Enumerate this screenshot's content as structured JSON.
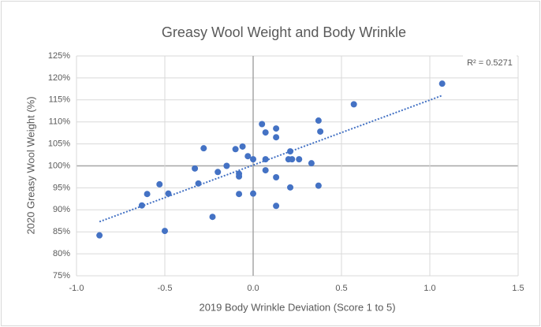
{
  "chart_data": {
    "type": "scatter",
    "title": "Greasy Wool Weight and Body Wrinkle",
    "xlabel": "2019 Body Wrinkle Deviation (Score 1 to 5)",
    "ylabel": "2020 Greasy Wool Weight (%)",
    "annotation": "R² = 0.5271",
    "color": "#4472c4",
    "x": [
      -0.87,
      -0.5,
      -0.63,
      -0.6,
      -0.48,
      -0.53,
      -0.33,
      -0.31,
      -0.28,
      -0.23,
      -0.2,
      -0.15,
      -0.1,
      -0.06,
      -0.08,
      -0.08,
      -0.08,
      -0.03,
      0.0,
      0.0,
      0.05,
      0.07,
      0.07,
      0.07,
      0.13,
      0.13,
      0.13,
      0.13,
      0.21,
      0.2,
      0.22,
      0.21,
      0.26,
      0.33,
      0.37,
      0.37,
      0.38,
      0.57,
      1.07
    ],
    "values": [
      84.2,
      85.2,
      91.0,
      93.6,
      93.7,
      95.8,
      99.4,
      96.0,
      104.0,
      88.4,
      98.6,
      100.0,
      103.8,
      104.4,
      98.2,
      97.6,
      93.6,
      102.2,
      93.7,
      101.5,
      109.5,
      107.6,
      99.0,
      101.5,
      108.5,
      106.5,
      97.4,
      90.9,
      103.3,
      101.5,
      101.5,
      95.1,
      101.5,
      100.6,
      110.3,
      95.5,
      107.8,
      114.0,
      118.7
    ],
    "trendline": {
      "x": [
        -0.87,
        1.07
      ],
      "values": [
        87.3,
        116.0
      ]
    },
    "xlim": [
      -1.0,
      1.5
    ],
    "xticks": [
      {
        "value": -1.0,
        "label": "-1.0"
      },
      {
        "value": -0.5,
        "label": "-0.5"
      },
      {
        "value": 0,
        "label": "0.0"
      },
      {
        "value": 0.5,
        "label": "0.5"
      },
      {
        "value": 1.0,
        "label": "1.0"
      },
      {
        "value": 1.5,
        "label": "1.5"
      }
    ],
    "ylim": [
      75,
      125
    ],
    "yticks": [
      {
        "value": 75,
        "label": "75%"
      },
      {
        "value": 80,
        "label": "80%"
      },
      {
        "value": 85,
        "label": "85%"
      },
      {
        "value": 90,
        "label": "90%"
      },
      {
        "value": 95,
        "label": "95%"
      },
      {
        "value": 100,
        "label": "100%"
      },
      {
        "value": 105,
        "label": "105%"
      },
      {
        "value": 110,
        "label": "110%"
      },
      {
        "value": 115,
        "label": "115%"
      },
      {
        "value": 120,
        "label": "120%"
      },
      {
        "value": 125,
        "label": "125%"
      }
    ],
    "grid": true,
    "x_axis_crosses": 100,
    "y_axis_crosses": 0
  }
}
